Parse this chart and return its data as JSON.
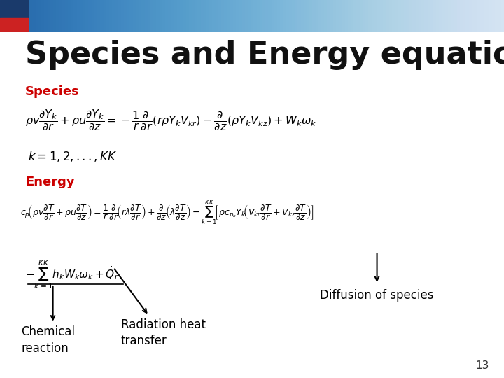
{
  "title": "Species and Energy equation",
  "title_fontsize": 32,
  "background_color": "#ffffff",
  "species_label": "Species",
  "energy_label": "Energy",
  "label_color": "#cc0000",
  "label_fontsize": 13,
  "annotation_diffusion": "Diffusion of species",
  "annotation_chemical_line1": "Chemical",
  "annotation_chemical_line2": "reaction",
  "annotation_radiation_line1": "Radiation heat",
  "annotation_radiation_line2": "transfer",
  "annotation_fontsize": 12,
  "page_number": "13"
}
